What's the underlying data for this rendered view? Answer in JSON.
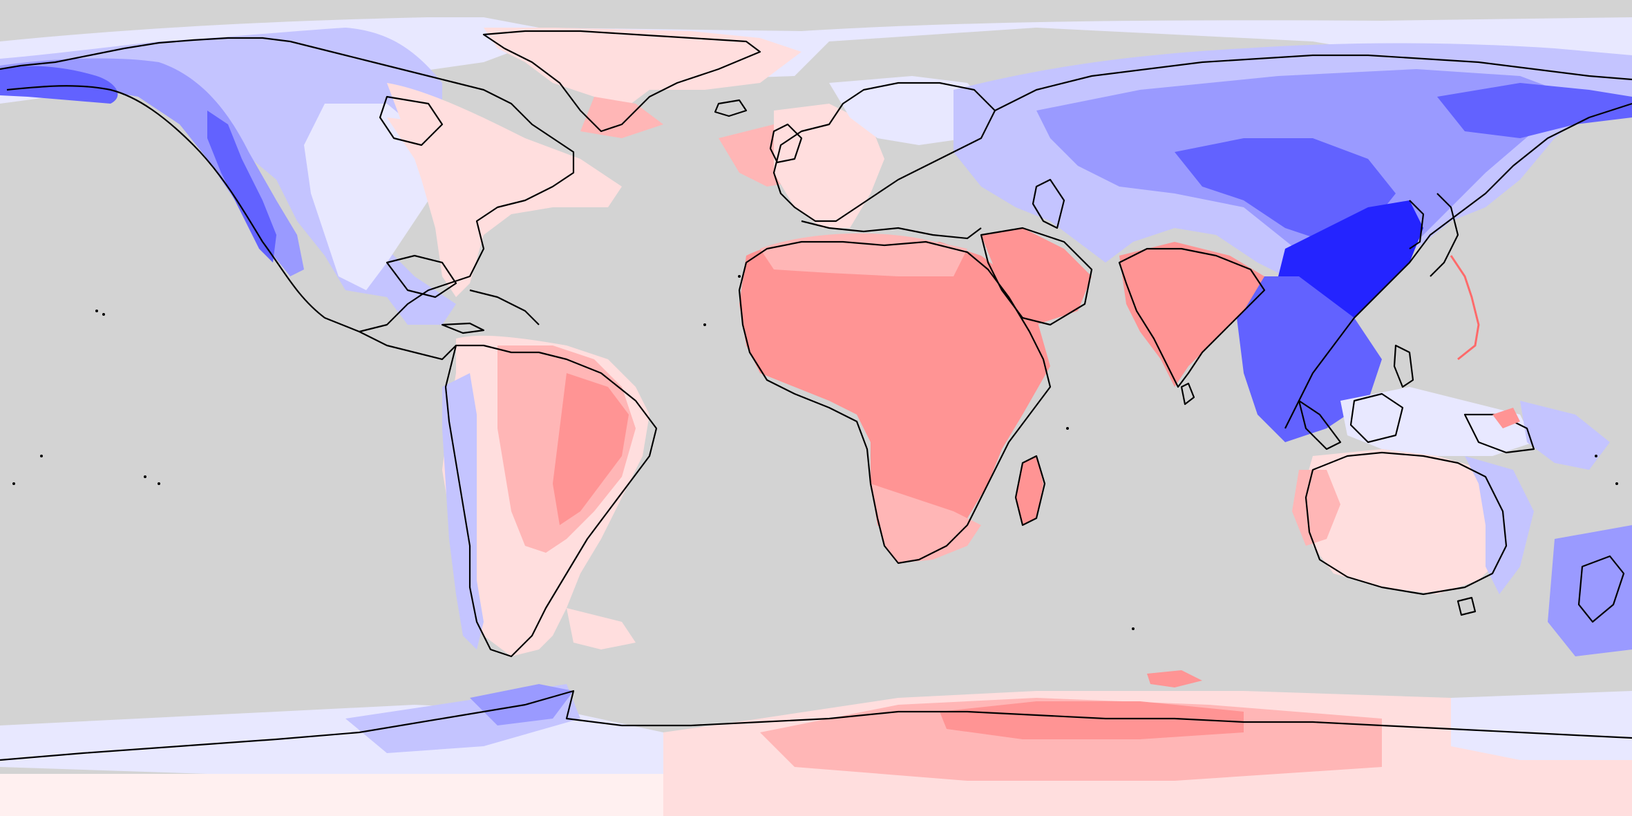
{
  "map": {
    "projection": "equirectangular",
    "extent": {
      "lon": [
        -180,
        180
      ],
      "lat": [
        -90,
        90
      ]
    },
    "coastlines": "black",
    "colors": {
      "ocean": "#d3d3d3",
      "red_strong": "#ff9494",
      "red_mid": "#ffb6b6",
      "red_light": "#ffdede",
      "neutral": "#fff0f0",
      "blue_faint": "#e8e8ff",
      "blue_light": "#c4c4ff",
      "blue_mid": "#9a9aff",
      "blue_strong": "#6262ff",
      "blue_deep": "#2424ff",
      "coast": "#000000"
    },
    "regions": [
      {
        "name": "north-america",
        "sign": "negative",
        "level": "mid"
      },
      {
        "name": "greenland",
        "sign": "positive",
        "level": "light"
      },
      {
        "name": "eastern-north-america",
        "sign": "positive",
        "level": "light"
      },
      {
        "name": "south-america",
        "sign": "positive",
        "level": "mid"
      },
      {
        "name": "europe",
        "sign": "negative",
        "level": "light"
      },
      {
        "name": "africa",
        "sign": "positive",
        "level": "strong"
      },
      {
        "name": "arabia",
        "sign": "positive",
        "level": "strong"
      },
      {
        "name": "india",
        "sign": "positive",
        "level": "strong"
      },
      {
        "name": "asia",
        "sign": "negative",
        "level": "mid"
      },
      {
        "name": "east-asia",
        "sign": "negative",
        "level": "deep"
      },
      {
        "name": "maritime-continent",
        "sign": "negative",
        "level": "strong"
      },
      {
        "name": "australia",
        "sign": "positive",
        "level": "light"
      },
      {
        "name": "new-zealand",
        "sign": "negative",
        "level": "strong"
      },
      {
        "name": "antarctica-west",
        "sign": "negative",
        "level": "light"
      },
      {
        "name": "antarctica-east",
        "sign": "positive",
        "level": "mid"
      }
    ]
  }
}
